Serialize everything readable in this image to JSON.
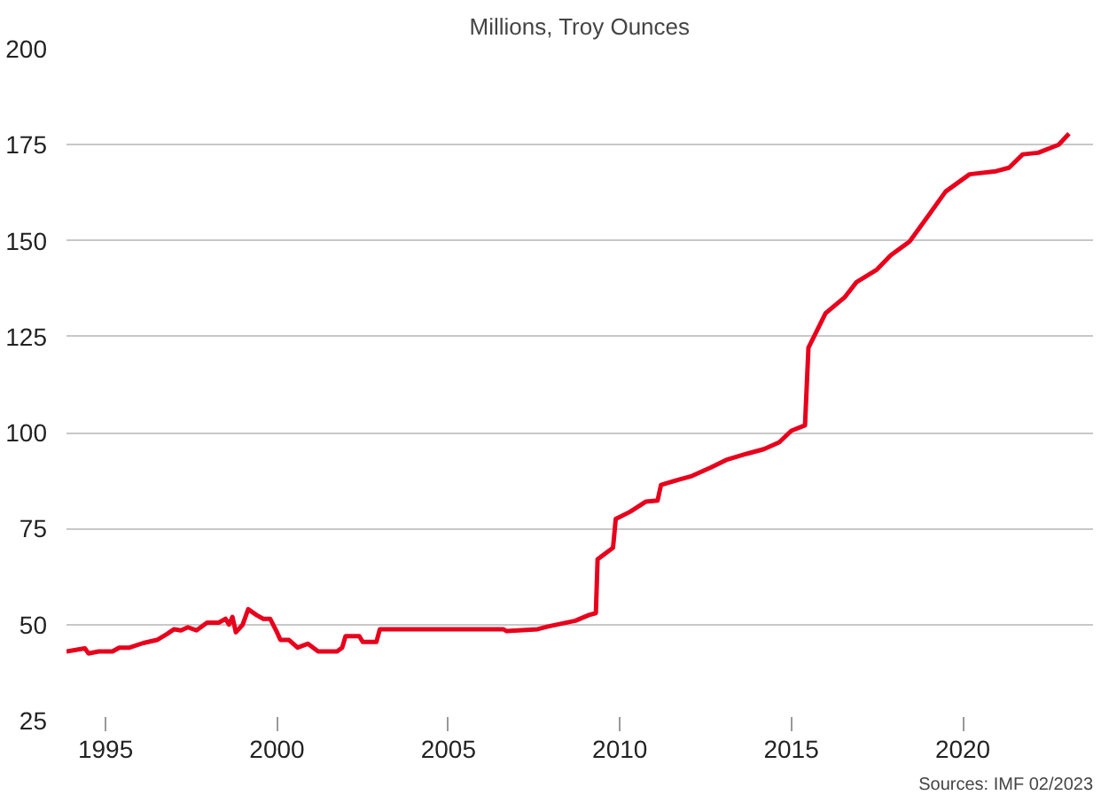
{
  "chart_data": {
    "type": "line",
    "title": "Millions, Troy Ounces",
    "x": [
      1993.86,
      1994.4,
      1994.5,
      1994.8,
      1995.2,
      1995.4,
      1995.7,
      1996.1,
      1996.5,
      1996.8,
      1997.0,
      1997.2,
      1997.4,
      1997.65,
      1997.96,
      1998.3,
      1998.5,
      1998.6,
      1998.7,
      1998.8,
      1999.0,
      1999.16,
      1999.4,
      1999.6,
      1999.8,
      2000.0,
      2000.1,
      2000.35,
      2000.6,
      2000.9,
      2001.2,
      2001.75,
      2001.9,
      2002.0,
      2002.4,
      2002.5,
      2002.9,
      2003.0,
      2006.6,
      2006.7,
      2007.6,
      2007.9,
      2008.7,
      2009.1,
      2009.3,
      2009.35,
      2009.8,
      2009.88,
      2010.3,
      2010.75,
      2011.1,
      2011.2,
      2011.7,
      2012.1,
      2012.65,
      2013.1,
      2013.7,
      2014.2,
      2014.65,
      2015.0,
      2015.4,
      2015.5,
      2016.0,
      2016.55,
      2016.9,
      2017.5,
      2017.9,
      2018.45,
      2018.98,
      2019.5,
      2020.2,
      2020.97,
      2021.35,
      2021.75,
      2022.2,
      2022.8,
      2023.1
    ],
    "series": [
      {
        "color": "#e8001c",
        "values": [
          43,
          43.8,
          42.5,
          43,
          43,
          44,
          44,
          45.2,
          46,
          47.6,
          48.8,
          48.5,
          49.3,
          48.5,
          50.5,
          50.5,
          51.5,
          50,
          52,
          48,
          50,
          54,
          52.5,
          51.5,
          51.5,
          48,
          46,
          46,
          44,
          45,
          43,
          43,
          44,
          47,
          47,
          45.5,
          45.5,
          48.8,
          48.8,
          48.3,
          48.8,
          49.5,
          51,
          52.5,
          53,
          67,
          70,
          77.5,
          79.4,
          82,
          82.3,
          86.4,
          87.7,
          88.7,
          90.9,
          92.9,
          94.5,
          95.7,
          97.5,
          100.5,
          101.9,
          122.1,
          131.1,
          135.2,
          139.2,
          142.5,
          146.2,
          149.8,
          156.3,
          162.8,
          167.3,
          168.1,
          169,
          172.5,
          172.9,
          175,
          177.9
        ]
      }
    ],
    "xlim": [
      1993.86,
      2023.8
    ],
    "ylim": [
      25,
      200
    ],
    "xticks": [
      1995,
      2000,
      2005,
      2010,
      2015,
      2020
    ],
    "yticks": [
      25,
      50,
      75,
      100,
      125,
      150,
      175,
      200
    ],
    "grid": "y",
    "annotations": [
      "Sources: IMF 02/2023"
    ]
  }
}
